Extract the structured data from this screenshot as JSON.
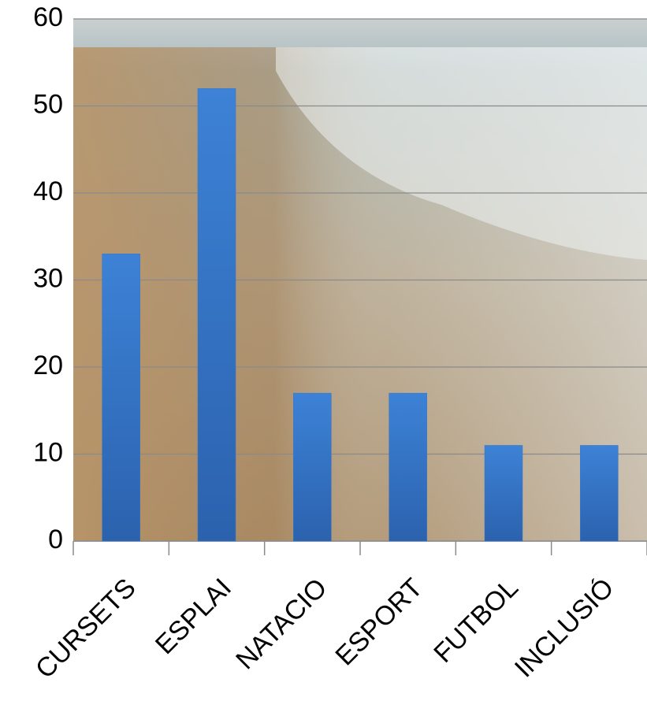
{
  "chart_data": {
    "type": "bar",
    "categories": [
      "CURSETS",
      "ESPLAI",
      "NATACIO",
      "ESPORT",
      "FUTBOL",
      "INCLUSIÓ"
    ],
    "values": [
      33,
      52,
      17,
      17,
      11,
      11
    ],
    "color": "#3474c8",
    "ylim": [
      0,
      60
    ],
    "yticks": [
      0,
      10,
      20,
      30,
      40,
      50,
      60
    ],
    "grid": true
  }
}
